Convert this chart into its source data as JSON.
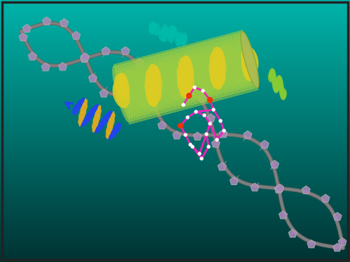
{
  "figsize": [
    5.0,
    3.75
  ],
  "dpi": 100,
  "bg_top": "#003333",
  "bg_bottom": "#00ccbb",
  "dna_backbone_color": "#888888",
  "dna_base_fill": "#aa88cc",
  "dna_base_edge": "#aaaaaa",
  "blue_helix_color": "#2244ee",
  "blue_helix_gold": "#ddaa22",
  "green_helix_color": "#88cc44",
  "green_helix_yellow": "#ddcc00",
  "green_helix_lime": "#aadd22",
  "green_ribbon_color": "#88cc44",
  "cyan_ribbon": "#00bbaa",
  "ligand_color": "#dd22aa",
  "ligand_white": "#ffffff",
  "ligand_red": "#ee3300"
}
